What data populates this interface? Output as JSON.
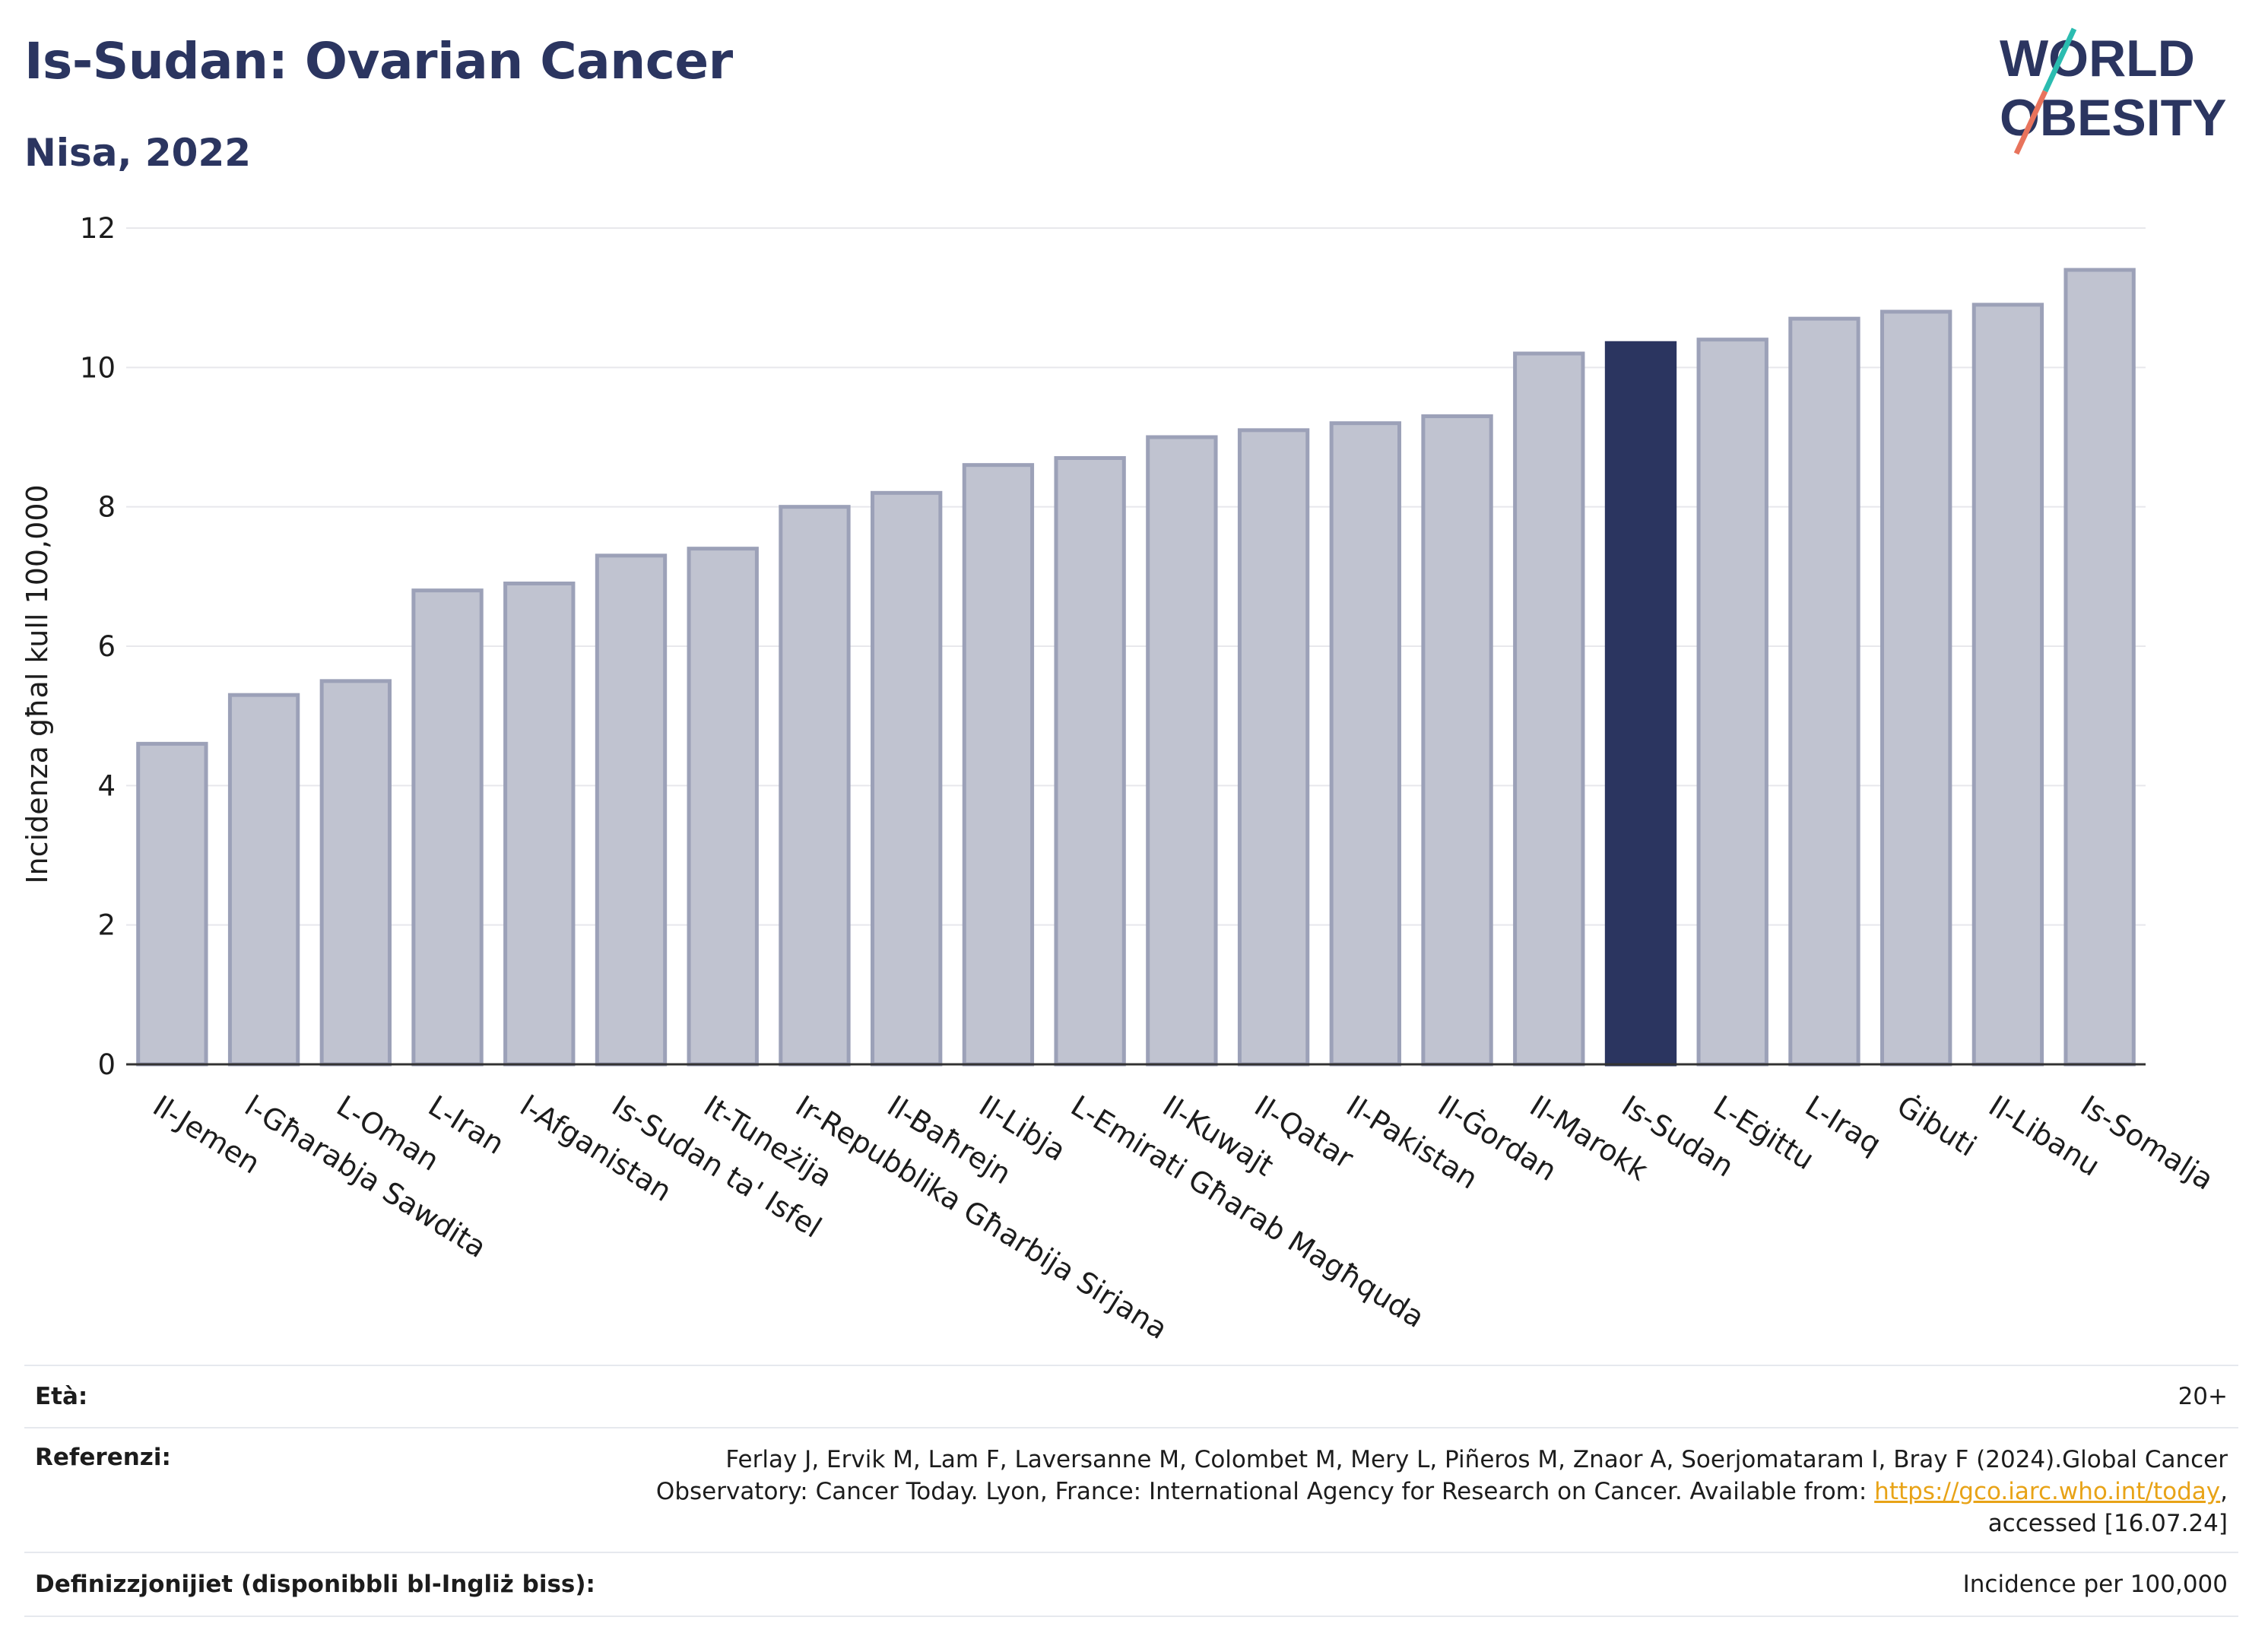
{
  "header": {
    "title": "Is-Sudan: Ovarian Cancer",
    "subtitle": "Nisa, 2022",
    "logo_line1": "WORLD",
    "logo_line2": "OBESITY"
  },
  "colors": {
    "bar": "#c0c3d0",
    "bar_border": "#9ca1b8",
    "highlight": "#2b3560",
    "title": "#2b3560",
    "logo_teal": "#2bbcb0",
    "logo_coral": "#e8735c",
    "link": "#e8a317"
  },
  "chart_data": {
    "type": "bar",
    "ylabel": "Incidenza għal kull 100,000",
    "xlabel": "",
    "ylim": [
      0,
      12
    ],
    "yticks": [
      0,
      2,
      4,
      6,
      8,
      10,
      12
    ],
    "grid": true,
    "highlight_category": "Is-Sudan",
    "categories": [
      "Il-Jemen",
      "l-Għarabja Sawdita",
      "L-Oman",
      "L-Iran",
      "l-Afganistan",
      "Is-Sudan ta' Isfel",
      "It-Tuneżija",
      "Ir-Repubblika Għarbija Sirjana",
      "Il-Baħrejn",
      "Il-Libja",
      "L-Emirati Għarab Magħquda",
      "Il-Kuwajt",
      "Il-Qatar",
      "Il-Pakistan",
      "Il-Ġordan",
      "Il-Marokk",
      "Is-Sudan",
      "L-Eġittu",
      "L-Iraq",
      "Ġibuti",
      "Il-Libanu",
      "Is-Somalja"
    ],
    "values": [
      4.6,
      5.3,
      5.5,
      6.8,
      6.9,
      7.3,
      7.4,
      8.0,
      8.2,
      8.6,
      8.7,
      9.0,
      9.1,
      9.2,
      9.3,
      10.2,
      10.35,
      10.4,
      10.7,
      10.8,
      10.9,
      11.4
    ]
  },
  "footer": {
    "age_label": "Età:",
    "age_value": "20+",
    "ref_label": "Referenzi:",
    "ref_line1": "Ferlay J, Ervik M, Lam F, Laversanne M, Colombet M, Mery L, Piñeros M, Znaor A, Soerjomataram I, Bray F (2024).Global Cancer",
    "ref_line2_pre": "Observatory: Cancer Today. Lyon, France: International Agency for Research on Cancer. Available from: ",
    "ref_link": "https://gco.iarc.who.int/today",
    "ref_line2_post": ",",
    "ref_line3": "accessed [16.07.24]",
    "def_label": "Definizzjonijiet (disponibbli bl-Ingliż biss):",
    "def_value": "Incidence per 100,000"
  }
}
